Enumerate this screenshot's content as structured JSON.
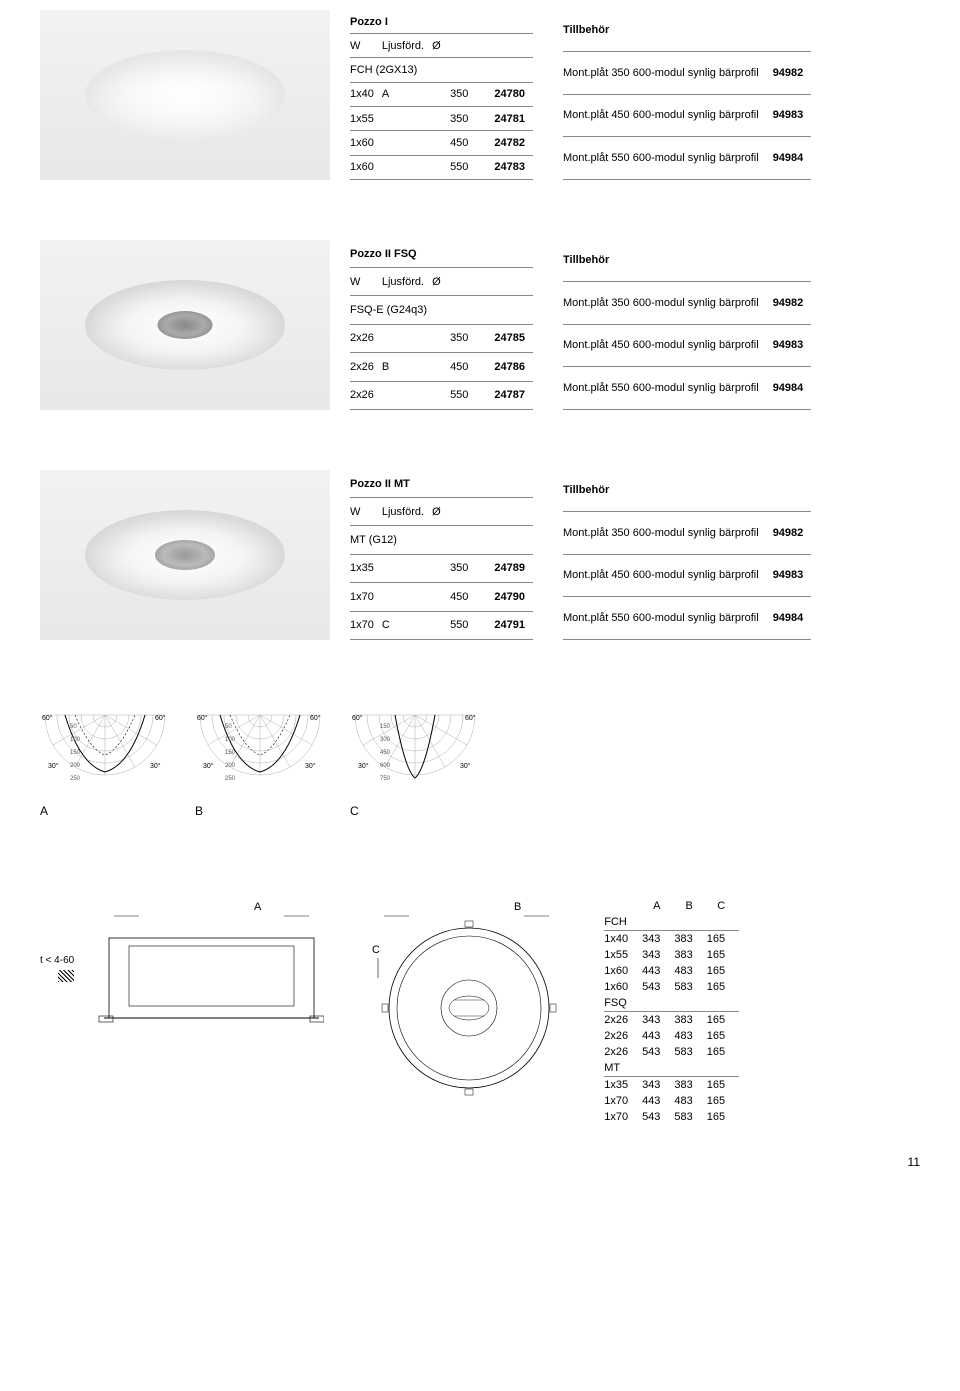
{
  "products": [
    {
      "title": "Pozzo I",
      "header": [
        "W",
        "Ljusförd.",
        "Ø",
        ""
      ],
      "subhead": "FCH (2GX13)",
      "rows": [
        [
          "1x40",
          "A",
          "350",
          "24780"
        ],
        [
          "1x55",
          "",
          "350",
          "24781"
        ],
        [
          "1x60",
          "",
          "450",
          "24782"
        ],
        [
          "1x60",
          "",
          "550",
          "24783"
        ]
      ]
    },
    {
      "title": "Pozzo II FSQ",
      "header": [
        "W",
        "Ljusförd.",
        "Ø",
        ""
      ],
      "subhead": "FSQ-E (G24q3)",
      "rows": [
        [
          "2x26",
          "",
          "350",
          "24785"
        ],
        [
          "2x26",
          "B",
          "450",
          "24786"
        ],
        [
          "2x26",
          "",
          "550",
          "24787"
        ]
      ]
    },
    {
      "title": "Pozzo II MT",
      "header": [
        "W",
        "Ljusförd.",
        "Ø",
        ""
      ],
      "subhead": "MT (G12)",
      "rows": [
        [
          "1x35",
          "",
          "350",
          "24789"
        ],
        [
          "1x70",
          "",
          "450",
          "24790"
        ],
        [
          "1x70",
          "C",
          "550",
          "24791"
        ]
      ]
    }
  ],
  "accessories": {
    "title": "Tillbehör",
    "rows": [
      [
        "Mont.plåt 350 600-modul synlig bärprofil",
        "94982"
      ],
      [
        "Mont.plåt 450 600-modul synlig bärprofil",
        "94983"
      ],
      [
        "Mont.plåt 550 600-modul synlig bärprofil",
        "94984"
      ]
    ]
  },
  "polar": {
    "labels": [
      "A",
      "B",
      "C"
    ],
    "diagrams": [
      {
        "angles": [
          "60°",
          "60°",
          "30°",
          "30°"
        ],
        "rings": [
          "50",
          "100",
          "150",
          "200",
          "250"
        ]
      },
      {
        "angles": [
          "60°",
          "60°",
          "30°",
          "30°"
        ],
        "rings": [
          "50",
          "100",
          "150",
          "200",
          "250"
        ]
      },
      {
        "angles": [
          "60°",
          "60°",
          "30°",
          "30°"
        ],
        "rings": [
          "150",
          "300",
          "450",
          "600",
          "750"
        ]
      }
    ]
  },
  "tech": {
    "note": "t < 4-60",
    "dimLabels": [
      "A",
      "B",
      "C"
    ],
    "groups": [
      {
        "name": "FCH",
        "rows": [
          [
            "1x40",
            "343",
            "383",
            "165"
          ],
          [
            "1x55",
            "343",
            "383",
            "165"
          ],
          [
            "1x60",
            "443",
            "483",
            "165"
          ],
          [
            "1x60",
            "543",
            "583",
            "165"
          ]
        ]
      },
      {
        "name": "FSQ",
        "rows": [
          [
            "2x26",
            "343",
            "383",
            "165"
          ],
          [
            "2x26",
            "443",
            "483",
            "165"
          ],
          [
            "2x26",
            "543",
            "583",
            "165"
          ]
        ]
      },
      {
        "name": "MT",
        "rows": [
          [
            "1x35",
            "343",
            "383",
            "165"
          ],
          [
            "1x70",
            "443",
            "483",
            "165"
          ],
          [
            "1x70",
            "543",
            "583",
            "165"
          ]
        ]
      }
    ]
  },
  "pageNumber": "11"
}
